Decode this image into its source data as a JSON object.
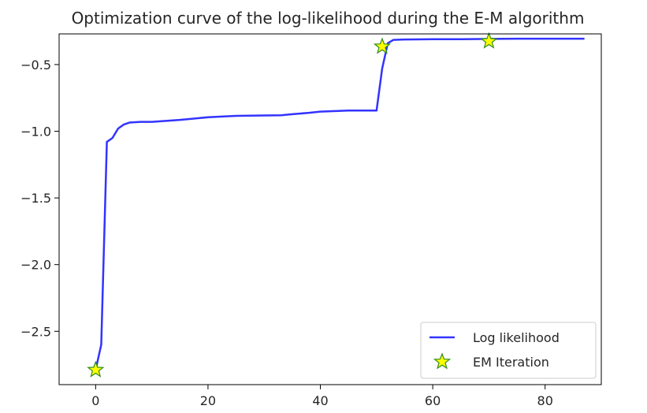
{
  "chart_data": {
    "type": "line",
    "title": "Optimization curve of the log-likelihood during the E-M algorithm",
    "xlabel": "",
    "ylabel": "",
    "xlim": [
      -6.5,
      90
    ],
    "ylim": [
      -2.9,
      -0.27
    ],
    "xticks": [
      0,
      20,
      40,
      60,
      80
    ],
    "xtick_labels": [
      "0",
      "20",
      "40",
      "60",
      "80"
    ],
    "yticks": [
      -0.5,
      -1.0,
      -1.5,
      -2.0,
      -2.5
    ],
    "ytick_labels": [
      "−0.5",
      "−1.0",
      "−1.5",
      "−2.0",
      "−2.5"
    ],
    "grid": false,
    "legend_position": "lower-right",
    "series": [
      {
        "name": "Log likelihood",
        "kind": "line",
        "color": "#3333ff",
        "x": [
          0,
          1,
          2,
          3,
          4,
          5,
          6,
          8,
          10,
          15,
          20,
          25,
          30,
          33,
          35,
          38,
          40,
          45,
          48,
          50,
          51,
          52,
          53,
          55,
          60,
          65,
          70,
          75,
          80,
          85,
          87
        ],
        "y": [
          -2.79,
          -2.6,
          -1.08,
          -1.05,
          -0.98,
          -0.95,
          -0.935,
          -0.93,
          -0.93,
          -0.915,
          -0.895,
          -0.885,
          -0.882,
          -0.88,
          -0.872,
          -0.862,
          -0.853,
          -0.845,
          -0.845,
          -0.845,
          -0.53,
          -0.34,
          -0.315,
          -0.312,
          -0.31,
          -0.31,
          -0.308,
          -0.306,
          -0.306,
          -0.306,
          -0.306
        ]
      },
      {
        "name": "EM Iteration",
        "kind": "scatter",
        "marker": "star",
        "fill": "#ffff00",
        "stroke": "#2e8b1e",
        "x": [
          0,
          51,
          70
        ],
        "y": [
          -2.79,
          -0.365,
          -0.325
        ]
      }
    ]
  }
}
